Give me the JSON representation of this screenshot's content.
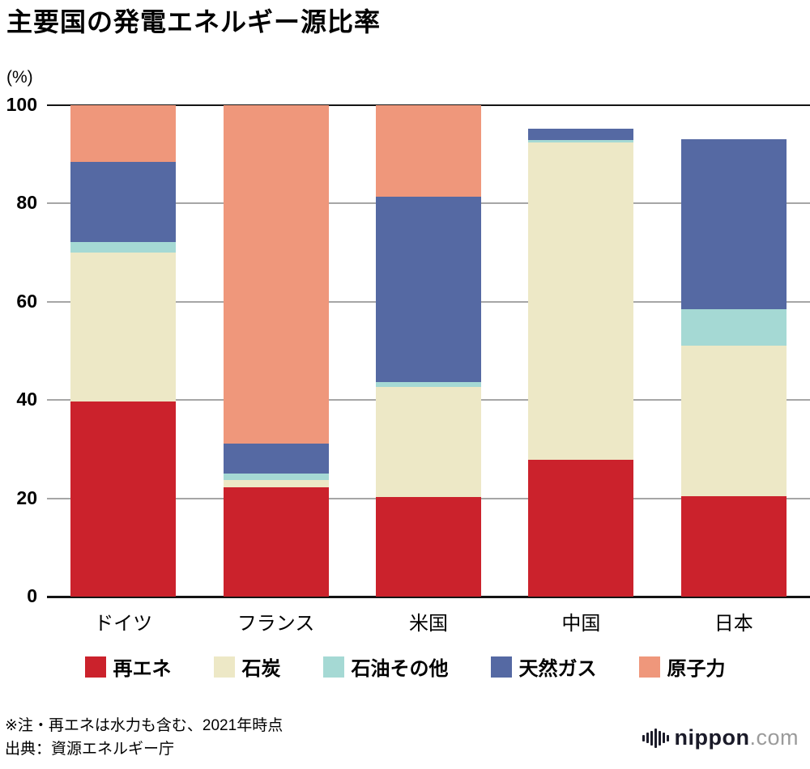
{
  "title": "主要国の発電エネルギー源比率",
  "y_axis_unit": "(%)",
  "notes": [
    "※注・再エネは水力も含む、2021年時点",
    "出典：資源エネルギー庁"
  ],
  "logo": {
    "name": "nippon",
    "tld": ".com"
  },
  "chart_data": {
    "type": "bar",
    "variant": "stacked",
    "title": "主要国の発電エネルギー源比率",
    "ylabel": "(%)",
    "ylim": [
      0,
      100
    ],
    "yticks": [
      0,
      20,
      40,
      60,
      80,
      100
    ],
    "grid": true,
    "legend_position": "bottom",
    "categories": [
      "ドイツ",
      "フランス",
      "米国",
      "中国",
      "日本"
    ],
    "series": [
      {
        "name": "再エネ",
        "color": "#cb222c",
        "values": [
          39.7,
          22.2,
          20.3,
          27.8,
          20.4
        ]
      },
      {
        "name": "石炭",
        "color": "#ede8c6",
        "values": [
          30.4,
          1.5,
          22.4,
          64.6,
          30.7
        ]
      },
      {
        "name": "石油その他",
        "color": "#a5d9d4",
        "values": [
          2.0,
          1.3,
          1.0,
          0.5,
          7.4
        ]
      },
      {
        "name": "天然ガス",
        "color": "#5569a3",
        "values": [
          16.4,
          6.1,
          37.7,
          2.4,
          34.6
        ]
      },
      {
        "name": "原子力",
        "color": "#ef977b",
        "values": [
          11.5,
          68.9,
          18.6,
          0,
          0
        ]
      }
    ]
  }
}
